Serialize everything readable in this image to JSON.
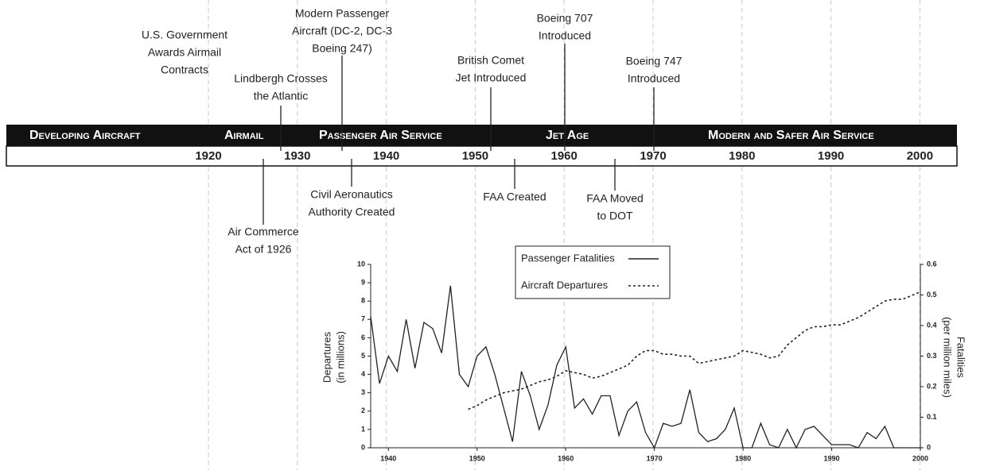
{
  "timeline": {
    "years": [
      1920,
      1930,
      1940,
      1950,
      1960,
      1970,
      1980,
      1990,
      2000
    ],
    "eras": [
      "Developing Aircraft",
      "Airmail",
      "Passenger Air Service",
      "Jet Age",
      "Modern and Safer Air Service"
    ],
    "events_above": [
      {
        "lines": [
          "U.S. Government",
          "Awards Airmail",
          "Contracts"
        ]
      },
      {
        "lines": [
          "Lindbergh Crosses",
          "the Atlantic"
        ]
      },
      {
        "lines": [
          "Modern Passenger",
          "Aircraft (DC-2, DC-3",
          "Boeing 247)"
        ]
      },
      {
        "lines": [
          "British Comet",
          "Jet Introduced"
        ]
      },
      {
        "lines": [
          "Boeing 707",
          "Introduced"
        ]
      },
      {
        "lines": [
          "Boeing 747",
          "Introduced"
        ]
      }
    ],
    "events_below": [
      {
        "lines": [
          "Air Commerce",
          "Act of 1926"
        ]
      },
      {
        "lines": [
          "Civil Aeronautics",
          "Authority Created"
        ]
      },
      {
        "lines": [
          "FAA Created"
        ]
      },
      {
        "lines": [
          "FAA Moved",
          "to DOT"
        ]
      }
    ]
  },
  "chart_data": {
    "type": "line",
    "ylabel": [
      "Departures",
      "(in millions)"
    ],
    "y2label": [
      "Fatalities",
      "(per million miles)"
    ],
    "x": [
      1938,
      1939,
      1940,
      1941,
      1942,
      1943,
      1944,
      1945,
      1946,
      1947,
      1948,
      1949,
      1950,
      1951,
      1952,
      1953,
      1954,
      1955,
      1956,
      1957,
      1958,
      1959,
      1960,
      1961,
      1962,
      1963,
      1964,
      1965,
      1966,
      1967,
      1968,
      1969,
      1970,
      1971,
      1972,
      1973,
      1974,
      1975,
      1976,
      1977,
      1978,
      1979,
      1980,
      1981,
      1982,
      1983,
      1984,
      1985,
      1986,
      1987,
      1988,
      1989,
      1990,
      1991,
      1992,
      1993,
      1994,
      1995,
      1996,
      1997,
      1998,
      1999,
      2000
    ],
    "series": [
      {
        "name": "Passenger Fatalities",
        "color": "#222",
        "dash": "solid",
        "axis": "y2",
        "values": [
          0.43,
          0.21,
          0.3,
          0.25,
          0.42,
          0.26,
          0.41,
          0.39,
          0.31,
          0.53,
          0.24,
          0.2,
          0.3,
          0.33,
          0.24,
          0.13,
          0.02,
          0.25,
          0.17,
          0.06,
          0.14,
          0.27,
          0.33,
          0.13,
          0.16,
          0.11,
          0.17,
          0.17,
          0.04,
          0.12,
          0.15,
          0.05,
          0.0,
          0.08,
          0.07,
          0.08,
          0.19,
          0.05,
          0.02,
          0.03,
          0.06,
          0.13,
          0.0,
          0.0,
          0.08,
          0.01,
          0.0,
          0.06,
          0.0,
          0.06,
          0.07,
          0.04,
          0.01,
          0.01,
          0.01,
          0.0,
          0.05,
          0.03,
          0.07,
          0.0,
          0.0,
          0.0,
          0.0
        ]
      },
      {
        "name": "Aircraft Departures",
        "color": "#222",
        "dash": "dashed",
        "axis": "y",
        "values": [
          null,
          null,
          null,
          null,
          null,
          null,
          null,
          null,
          null,
          null,
          null,
          2.1,
          2.3,
          2.6,
          2.8,
          3.0,
          3.1,
          3.2,
          3.4,
          3.6,
          3.7,
          3.9,
          4.2,
          4.1,
          4.0,
          3.8,
          3.9,
          4.1,
          4.3,
          4.5,
          5.0,
          5.3,
          5.3,
          5.1,
          5.1,
          5.0,
          5.0,
          4.6,
          4.7,
          4.8,
          4.9,
          5.0,
          5.3,
          5.2,
          5.1,
          4.9,
          5.0,
          5.6,
          6.0,
          6.4,
          6.6,
          6.6,
          6.7,
          6.7,
          6.9,
          7.1,
          7.4,
          7.7,
          8.0,
          8.1,
          8.1,
          8.3,
          8.5
        ]
      }
    ],
    "xlim": [
      1938,
      2000
    ],
    "xticks": [
      1940,
      1950,
      1960,
      1970,
      1980,
      1990,
      2000
    ],
    "ylim": [
      0,
      10
    ],
    "yticks": [
      0,
      1,
      2,
      3,
      4,
      5,
      6,
      7,
      8,
      9,
      10
    ],
    "y2lim": [
      0,
      0.6
    ],
    "y2ticks": [
      0,
      0.1,
      0.2,
      0.3,
      0.4,
      0.5,
      0.6
    ],
    "grid": "x",
    "legend": "top"
  }
}
